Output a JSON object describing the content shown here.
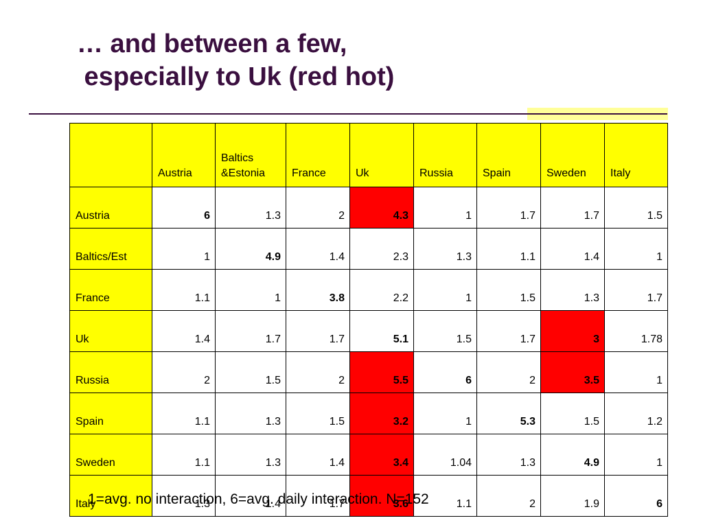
{
  "slide": {
    "title_line1": "… and between a few,",
    "title_line2": " especially to Uk (red hot)",
    "footnote": "1=avg. no interaction, 6=avg. daily interaction. N=152"
  },
  "colors": {
    "header_fill": "#ffff00",
    "hot_fill": "#ff0000",
    "accent_bar": "#ffff99",
    "title_color": "#3a0f3f"
  },
  "table": {
    "corner": "",
    "columns": [
      "Austria",
      "Baltics &Estonia",
      "France",
      "Uk",
      "Russia",
      "Spain",
      "Sweden",
      "Italy"
    ],
    "rows": [
      {
        "label": "Austria",
        "values": [
          "6",
          "1.3",
          "2",
          "4.3",
          "1",
          "1.7",
          "1.7",
          "1.5"
        ],
        "bold": [
          true,
          false,
          false,
          true,
          false,
          false,
          false,
          false
        ],
        "hot": [
          false,
          false,
          false,
          true,
          false,
          false,
          false,
          false
        ]
      },
      {
        "label": "Baltics/Est",
        "values": [
          "1",
          "4.9",
          "1.4",
          "2.3",
          "1.3",
          "1.1",
          "1.4",
          "1"
        ],
        "bold": [
          false,
          true,
          false,
          false,
          false,
          false,
          false,
          false
        ],
        "hot": [
          false,
          false,
          false,
          false,
          false,
          false,
          false,
          false
        ]
      },
      {
        "label": "France",
        "values": [
          "1.1",
          "1",
          "3.8",
          "2.2",
          "1",
          "1.5",
          "1.3",
          "1.7"
        ],
        "bold": [
          false,
          false,
          true,
          false,
          false,
          false,
          false,
          false
        ],
        "hot": [
          false,
          false,
          false,
          false,
          false,
          false,
          false,
          false
        ]
      },
      {
        "label": "Uk",
        "values": [
          "1.4",
          "1.7",
          "1.7",
          "5.1",
          "1.5",
          "1.7",
          "3",
          "1.78"
        ],
        "bold": [
          false,
          false,
          false,
          true,
          false,
          false,
          true,
          false
        ],
        "hot": [
          false,
          false,
          false,
          false,
          false,
          false,
          true,
          false
        ]
      },
      {
        "label": "Russia",
        "values": [
          "2",
          "1.5",
          "2",
          "5.5",
          "6",
          "2",
          "3.5",
          "1"
        ],
        "bold": [
          false,
          false,
          false,
          true,
          true,
          false,
          true,
          false
        ],
        "hot": [
          false,
          false,
          false,
          true,
          false,
          false,
          true,
          false
        ]
      },
      {
        "label": "Spain",
        "values": [
          "1.1",
          "1.3",
          "1.5",
          "3.2",
          "1",
          "5.3",
          "1.5",
          "1.2"
        ],
        "bold": [
          false,
          false,
          false,
          true,
          false,
          true,
          false,
          false
        ],
        "hot": [
          false,
          false,
          false,
          true,
          false,
          false,
          false,
          false
        ]
      },
      {
        "label": "Sweden",
        "values": [
          "1.1",
          "1.3",
          "1.4",
          "3.4",
          "1.04",
          "1.3",
          "4.9",
          "1"
        ],
        "bold": [
          false,
          false,
          false,
          true,
          false,
          false,
          true,
          false
        ],
        "hot": [
          false,
          false,
          false,
          true,
          false,
          false,
          false,
          false
        ]
      },
      {
        "label": "Italy",
        "values": [
          "1.3",
          "1.4",
          "1.7",
          "3.6",
          "1.1",
          "2",
          "1.9",
          "6"
        ],
        "bold": [
          false,
          false,
          false,
          true,
          false,
          false,
          false,
          true
        ],
        "hot": [
          false,
          false,
          false,
          true,
          false,
          false,
          false,
          false
        ]
      }
    ]
  }
}
